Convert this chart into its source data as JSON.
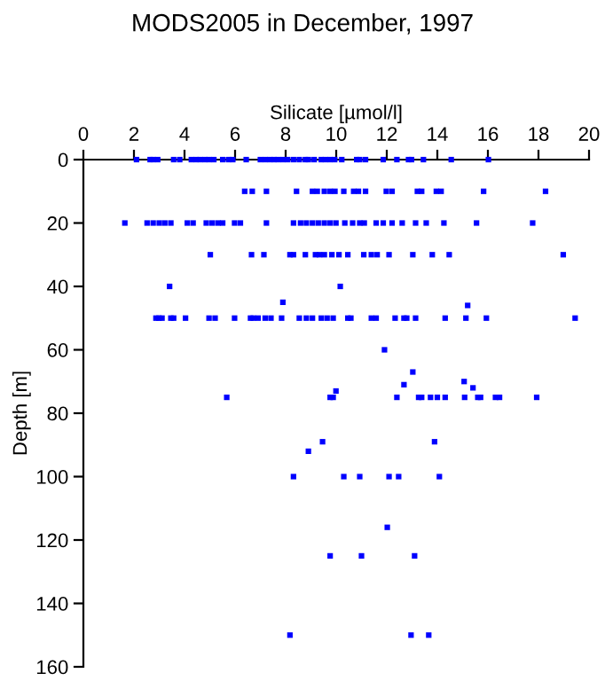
{
  "chart_data": {
    "type": "scatter",
    "title": "MODS2005 in December, 1997",
    "xlabel": "Silicate [µmol/l]",
    "ylabel": "Depth [m]",
    "xlim": [
      0,
      20
    ],
    "xticks": [
      0,
      2,
      4,
      6,
      8,
      10,
      12,
      14,
      16,
      18,
      20
    ],
    "ylim": [
      160,
      0
    ],
    "yticks": [
      0,
      20,
      40,
      60,
      80,
      100,
      120,
      140,
      160
    ],
    "grid": false,
    "marker": "square",
    "series": [
      {
        "color": "#0000ff",
        "x": [
          2.1,
          2.64,
          2.76,
          2.94,
          3.57,
          3.81,
          4.27,
          4.46,
          4.62,
          4.81,
          4.97,
          5.16,
          5.51,
          5.74,
          5.91,
          6.44,
          7.0,
          7.19,
          7.38,
          7.54,
          7.7,
          7.89,
          8.08,
          8.31,
          8.54,
          8.78,
          8.9,
          9.13,
          9.41,
          9.57,
          9.76,
          9.94,
          10.22,
          10.81,
          10.93,
          11.16,
          11.86,
          12.4,
          12.86,
          12.98,
          13.45,
          14.55,
          16.02,
          6.38,
          6.68,
          7.24,
          8.43,
          9.06,
          9.25,
          9.53,
          9.76,
          9.95,
          10.3,
          10.69,
          10.88,
          11.16,
          11.98,
          12.21,
          13.21,
          13.38,
          13.96,
          14.15,
          15.83,
          18.28,
          1.64,
          2.52,
          2.76,
          3.0,
          3.22,
          3.46,
          4.11,
          4.34,
          4.86,
          5.09,
          5.32,
          5.51,
          5.98,
          6.21,
          7.24,
          8.31,
          8.59,
          8.82,
          9.06,
          9.29,
          9.53,
          9.76,
          9.99,
          10.34,
          10.65,
          10.93,
          11.11,
          11.58,
          11.86,
          12.21,
          12.61,
          13.14,
          13.56,
          14.26,
          15.55,
          17.77,
          5.02,
          6.65,
          7.14,
          8.17,
          8.31,
          8.78,
          9.18,
          9.34,
          9.53,
          9.83,
          10.11,
          10.46,
          11.09,
          11.39,
          11.62,
          12.09,
          13.03,
          13.8,
          14.47,
          18.98,
          3.41,
          10.16,
          7.89,
          15.2,
          2.87,
          2.99,
          3.11,
          3.46,
          3.57,
          4.04,
          4.97,
          5.21,
          5.98,
          6.61,
          6.72,
          6.91,
          7.19,
          7.42,
          7.84,
          8.54,
          8.82,
          9.06,
          9.41,
          9.64,
          9.88,
          10.46,
          10.58,
          11.39,
          11.58,
          12.33,
          12.68,
          12.79,
          13.14,
          14.31,
          15.13,
          15.94,
          19.45,
          11.91,
          13.03,
          15.06,
          12.68,
          15.41,
          9.99,
          5.67,
          9.76,
          9.88,
          12.4,
          13.26,
          13.38,
          13.73,
          14.0,
          14.31,
          15.08,
          15.6,
          15.71,
          16.3,
          16.46,
          17.93,
          9.46,
          13.89,
          8.9,
          8.31,
          10.3,
          10.93,
          12.09,
          12.47,
          14.08,
          12.02,
          9.76,
          11.0,
          13.1,
          8.17,
          12.96,
          13.66
        ],
        "values": [
          0,
          0,
          0,
          0,
          0,
          0,
          0,
          0,
          0,
          0,
          0,
          0,
          0,
          0,
          0,
          0,
          0,
          0,
          0,
          0,
          0,
          0,
          0,
          0,
          0,
          0,
          0,
          0,
          0,
          0,
          0,
          0,
          0,
          0,
          0,
          0,
          0,
          0,
          0,
          0,
          0,
          0,
          0,
          10,
          10,
          10,
          10,
          10,
          10,
          10,
          10,
          10,
          10,
          10,
          10,
          10,
          10,
          10,
          10,
          10,
          10,
          10,
          10,
          10,
          20,
          20,
          20,
          20,
          20,
          20,
          20,
          20,
          20,
          20,
          20,
          20,
          20,
          20,
          20,
          20,
          20,
          20,
          20,
          20,
          20,
          20,
          20,
          20,
          20,
          20,
          20,
          20,
          20,
          20,
          20,
          20,
          20,
          20,
          20,
          20,
          30,
          30,
          30,
          30,
          30,
          30,
          30,
          30,
          30,
          30,
          30,
          30,
          30,
          30,
          30,
          30,
          30,
          30,
          30,
          30,
          40,
          40,
          45,
          46,
          50,
          50,
          50,
          50,
          50,
          50,
          50,
          50,
          50,
          50,
          50,
          50,
          50,
          50,
          50,
          50,
          50,
          50,
          50,
          50,
          50,
          50,
          50,
          50,
          50,
          50,
          50,
          50,
          50,
          50,
          50,
          50,
          50,
          60,
          67,
          70,
          71,
          72,
          73,
          75,
          75,
          75,
          75,
          75,
          75,
          75,
          75,
          75,
          75,
          75,
          75,
          75,
          75,
          75,
          89,
          89,
          92,
          100,
          100,
          100,
          100,
          100,
          100,
          116,
          125,
          125,
          125,
          150,
          150,
          150
        ]
      }
    ]
  }
}
